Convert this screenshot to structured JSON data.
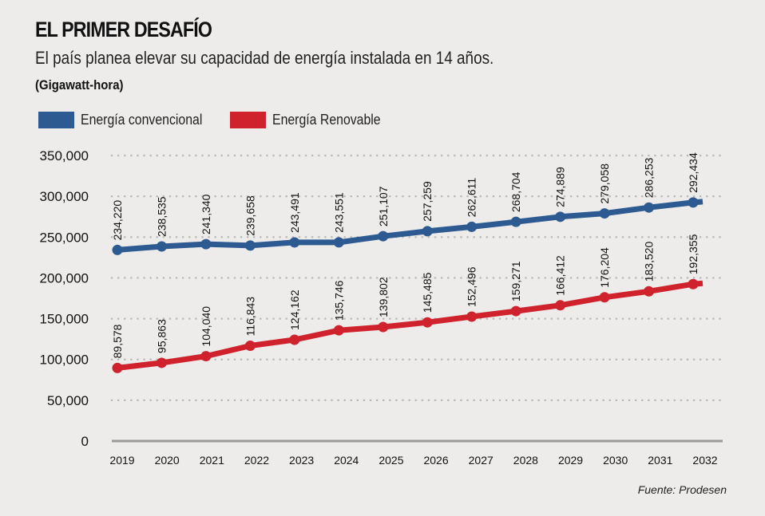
{
  "header": {
    "title": "EL PRIMER DESAFÍO",
    "subtitle": "El país planea elevar su capacidad de energía instalada en 14 años.",
    "units": "(Gigawatt-hora)"
  },
  "legend": [
    {
      "label": "Energía convencional",
      "color": "#2d5a91"
    },
    {
      "label": "Energía Renovable",
      "color": "#d0222d"
    }
  ],
  "source": "Fuente: Prodesen",
  "chart_data": {
    "type": "line",
    "title": "EL PRIMER DESAFÍO",
    "subtitle": "El país planea elevar su capacidad de energía instalada en 14 años.",
    "xlabel": "",
    "ylabel": "(Gigawatt-hora)",
    "x": [
      "2019",
      "2020",
      "2021",
      "2022",
      "2023",
      "2024",
      "2025",
      "2026",
      "2027",
      "2028",
      "2029",
      "2030",
      "2031",
      "2032"
    ],
    "ylim": [
      0,
      350000
    ],
    "yticks": [
      0,
      50000,
      100000,
      150000,
      200000,
      250000,
      300000,
      350000
    ],
    "ytick_labels": [
      "0",
      "50,000",
      "100,000",
      "150,000",
      "200,000",
      "250,000",
      "300,000",
      "350,000"
    ],
    "grid": true,
    "legend_position": "top-left",
    "series": [
      {
        "name": "Energía convencional",
        "color": "#2d5a91",
        "values": [
          234220,
          238535,
          241340,
          239658,
          243491,
          243551,
          251107,
          257259,
          262611,
          268704,
          274889,
          279058,
          286253,
          292434
        ],
        "labels": [
          "234,220",
          "238,535",
          "241,340",
          "239,658",
          "243,491",
          "243,551",
          "251,107",
          "257,259",
          "262,611",
          "268,704",
          "274,889",
          "279,058",
          "286,253",
          "292,434"
        ]
      },
      {
        "name": "Energía Renovable",
        "color": "#d0222d",
        "values": [
          89578,
          95863,
          104040,
          116843,
          124162,
          135746,
          139802,
          145485,
          152496,
          159271,
          166412,
          176204,
          183520,
          192355
        ],
        "labels": [
          "89,578",
          "95,863",
          "104,040",
          "116,843",
          "124,162",
          "135,746",
          "139,802",
          "145,485",
          "152,496",
          "159,271",
          "166,412",
          "176,204",
          "183,520",
          "192,355"
        ]
      }
    ]
  }
}
